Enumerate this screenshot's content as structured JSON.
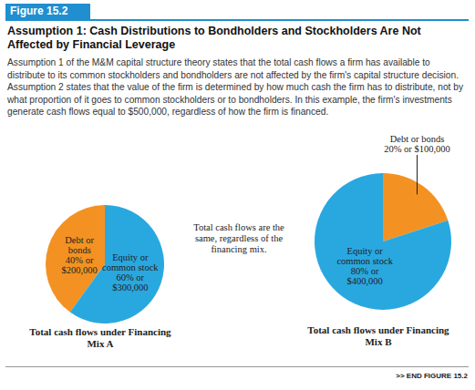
{
  "figure_label": "Figure 15.2",
  "title": "Assumption 1: Cash Distributions to Bondholders and Stockholders Are Not Affected by Financial Leverage",
  "caption": "Assumption 1 of the M&M capital structure theory states that the total cash flows a firm has available to distribute to its common stockholders and bondholders are not affected by the firm's capital structure decision. Assumption 2 states that the value of the firm is determined by how much cash the firm has to distribute, not by what proportion of it goes to common stockholders or to bondholders. In this example, the firm's investments generate cash flows equal to $500,000, regardless of how the firm is financed.",
  "annotation": "Total cash flows are the same, regardless of the financing mix.",
  "end_label": ">> END FIGURE 15.2",
  "chart_data": [
    {
      "type": "pie",
      "title": "Total cash flows under Financing Mix A",
      "categories": [
        "Debt or bonds",
        "Equity or common stock"
      ],
      "values": [
        40,
        60
      ],
      "value_labels": [
        "40% or $200,000",
        "60% or $300,000"
      ],
      "colors": [
        "#f39222",
        "#29a8e0"
      ]
    },
    {
      "type": "pie",
      "title": "Total cash flows under Financing Mix B",
      "categories": [
        "Debt or bonds",
        "Equity or common stock"
      ],
      "values": [
        20,
        80
      ],
      "value_labels": [
        "20% or $100,000",
        "80% or $400,000"
      ],
      "colors": [
        "#f39222",
        "#29a8e0"
      ]
    }
  ]
}
